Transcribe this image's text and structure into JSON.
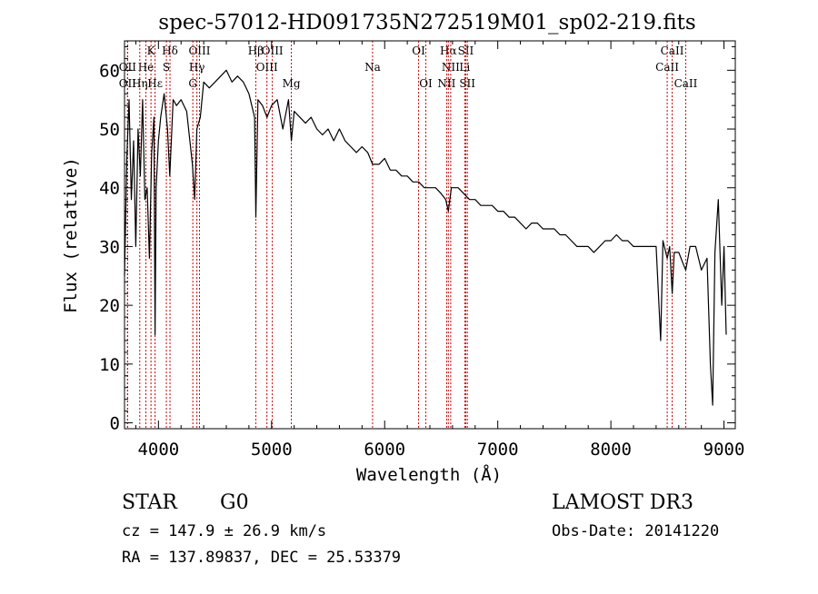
{
  "chart_data": {
    "type": "line",
    "title": "spec-57012-HD091735N272519M01_sp02-219.fits",
    "xlabel": "Wavelength (Å)",
    "ylabel": "Flux (relative)",
    "xlim": [
      3700,
      9100
    ],
    "ylim": [
      -1,
      65
    ],
    "xticks": [
      4000,
      5000,
      6000,
      7000,
      8000,
      9000
    ],
    "yticks": [
      0,
      10,
      20,
      30,
      40,
      50,
      60
    ],
    "series": [
      {
        "name": "flux",
        "x": [
          3700,
          3720,
          3740,
          3760,
          3780,
          3800,
          3820,
          3840,
          3860,
          3880,
          3900,
          3920,
          3940,
          3960,
          3970,
          3980,
          4000,
          4020,
          4050,
          4080,
          4100,
          4130,
          4160,
          4200,
          4250,
          4300,
          4320,
          4340,
          4370,
          4400,
          4450,
          4500,
          4550,
          4600,
          4650,
          4700,
          4750,
          4800,
          4850,
          4861,
          4880,
          4920,
          4960,
          5000,
          5050,
          5100,
          5150,
          5175,
          5200,
          5250,
          5300,
          5350,
          5400,
          5450,
          5500,
          5550,
          5600,
          5650,
          5700,
          5750,
          5800,
          5850,
          5893,
          5950,
          6000,
          6050,
          6100,
          6150,
          6200,
          6250,
          6300,
          6350,
          6400,
          6450,
          6500,
          6540,
          6563,
          6590,
          6620,
          6650,
          6700,
          6750,
          6800,
          6850,
          6900,
          6950,
          7000,
          7050,
          7100,
          7150,
          7200,
          7250,
          7300,
          7350,
          7400,
          7450,
          7500,
          7550,
          7600,
          7650,
          7700,
          7750,
          7800,
          7850,
          7900,
          7950,
          8000,
          8050,
          8100,
          8150,
          8200,
          8250,
          8300,
          8350,
          8400,
          8440,
          8460,
          8498,
          8520,
          8542,
          8560,
          8600,
          8640,
          8662,
          8700,
          8750,
          8800,
          8850,
          8880,
          8900,
          8920,
          8950,
          8980,
          9000,
          9020
        ],
        "values": [
          25,
          45,
          55,
          38,
          48,
          30,
          50,
          42,
          55,
          38,
          40,
          28,
          46,
          52,
          15,
          40,
          48,
          52,
          56,
          50,
          42,
          55,
          54,
          55,
          53,
          44,
          38,
          50,
          52,
          58,
          57,
          58,
          59,
          60,
          58,
          59,
          58,
          56,
          52,
          35,
          55,
          54,
          52,
          54,
          55,
          50,
          55,
          48,
          53,
          52,
          51,
          52,
          50,
          49,
          50,
          48,
          50,
          48,
          47,
          46,
          47,
          46,
          44,
          44,
          45,
          43,
          43,
          42,
          42,
          41,
          41,
          40,
          40,
          40,
          39,
          38,
          36,
          40,
          40,
          40,
          39,
          38,
          38,
          37,
          37,
          37,
          36,
          36,
          35,
          35,
          34,
          33,
          34,
          34,
          33,
          33,
          33,
          32,
          32,
          31,
          30,
          30,
          30,
          29,
          30,
          31,
          31,
          32,
          31,
          31,
          30,
          30,
          30,
          30,
          30,
          14,
          31,
          28,
          30,
          22,
          29,
          29,
          27,
          26,
          30,
          30,
          26,
          28,
          10,
          3,
          29,
          38,
          20,
          30,
          15
        ]
      }
    ],
    "line_markers": [
      {
        "label": "Hδ",
        "wave": 4102,
        "row": 1
      },
      {
        "label": "K",
        "wave": 3934,
        "row": 1
      },
      {
        "label": "Hβ",
        "wave": 4861,
        "row": 1
      },
      {
        "label": "OIII",
        "wave": 4363,
        "row": 1
      },
      {
        "label": "OIII",
        "wave": 5007,
        "row": 1
      },
      {
        "label": "OI",
        "wave": 6300,
        "row": 1
      },
      {
        "label": "Hα",
        "wave": 6563,
        "row": 1
      },
      {
        "label": "SII",
        "wave": 6717,
        "row": 1
      },
      {
        "label": "CaII",
        "wave": 8542,
        "row": 1
      },
      {
        "label": "OII",
        "wave": 3727,
        "row": 2
      },
      {
        "label": "He",
        "wave": 3889,
        "row": 2
      },
      {
        "label": "S",
        "wave": 4070,
        "row": 2
      },
      {
        "label": "Hγ",
        "wave": 4340,
        "row": 2
      },
      {
        "label": "OIII",
        "wave": 4959,
        "row": 2
      },
      {
        "label": "Na",
        "wave": 5893,
        "row": 2
      },
      {
        "label": "NII",
        "wave": 6584,
        "row": 2
      },
      {
        "label": "Li",
        "wave": 6708,
        "row": 2
      },
      {
        "label": "CaII",
        "wave": 8498,
        "row": 2
      },
      {
        "label": "OII",
        "wave": 3727,
        "row": 3
      },
      {
        "label": "Hη",
        "wave": 3835,
        "row": 3
      },
      {
        "label": "Hε",
        "wave": 3970,
        "row": 3
      },
      {
        "label": "G",
        "wave": 4304,
        "row": 3
      },
      {
        "label": "Mg",
        "wave": 5175,
        "row": 3
      },
      {
        "label": "OI",
        "wave": 6364,
        "row": 3
      },
      {
        "label": "NII",
        "wave": 6548,
        "row": 3
      },
      {
        "label": "SII",
        "wave": 6731,
        "row": 3
      },
      {
        "label": "CaII",
        "wave": 8662,
        "row": 3
      }
    ]
  },
  "info": {
    "object_type": "STAR",
    "subclass": "G0",
    "survey": "LAMOST DR3",
    "redshift": "cz = 147.9 ± 26.9 km/s",
    "obs_date": "Obs-Date: 20141220",
    "coords": "RA = 137.89837, DEC =  25.53379"
  }
}
